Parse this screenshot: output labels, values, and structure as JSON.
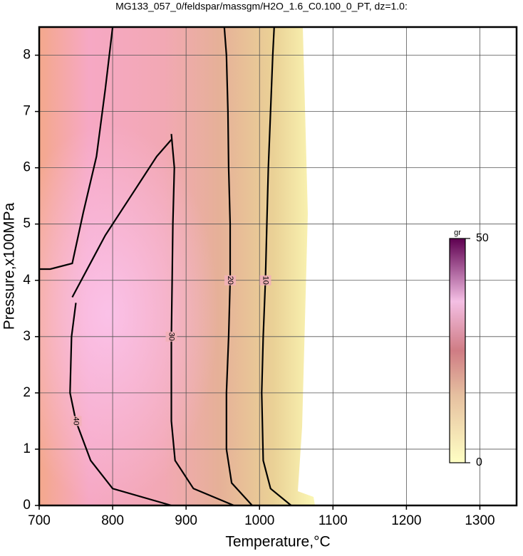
{
  "chart_data": {
    "type": "contour",
    "title": "MG133_057_0/feldspar/massgm/H2O_1.6_C0.100_0_PT, dz=1.0:",
    "x_label": "Temperature,°C",
    "y_label": "Pressure,x100MPa",
    "xlim": [
      700,
      1350
    ],
    "ylim": [
      0,
      8.5
    ],
    "xticks": [
      700,
      800,
      900,
      1000,
      1100,
      1200,
      1300
    ],
    "yticks": [
      0,
      1,
      2,
      3,
      4,
      5,
      6,
      7,
      8
    ],
    "grid": true,
    "contours": [
      {
        "level": 10,
        "x": [
          1043,
          1015,
          1005,
          1003,
          1005,
          1008,
          1010,
          1012,
          1015,
          1018,
          1020
        ],
        "y": [
          0,
          0.3,
          0.8,
          2,
          3,
          4,
          5,
          6,
          7,
          8,
          8.5
        ]
      },
      {
        "level": 20,
        "x": [
          990,
          962,
          955,
          955,
          958,
          960,
          960,
          958,
          957,
          955,
          952
        ],
        "y": [
          0,
          0.4,
          1,
          2,
          3,
          4,
          5,
          6,
          7,
          8,
          8.5
        ]
      },
      {
        "level": 30,
        "x": [
          965,
          910,
          885,
          880,
          880,
          881,
          882,
          884,
          880
        ],
        "y": [
          0,
          0.3,
          0.8,
          1.5,
          3,
          4,
          5,
          6,
          6.6
        ]
      },
      {
        "level": 40,
        "x": [
          880,
          800,
          770,
          750,
          742,
          744,
          750
        ],
        "y": [
          0,
          0.3,
          0.8,
          1.5,
          2,
          3,
          3.6
        ]
      }
    ],
    "boundaries": [
      {
        "x": [
          745,
          790,
          830,
          860,
          880
        ],
        "y": [
          3.7,
          4.8,
          5.6,
          6.2,
          6.5
        ]
      },
      {
        "x": [
          700,
          715,
          745,
          760,
          778,
          790,
          800
        ],
        "y": [
          4.2,
          4.2,
          4.3,
          5.2,
          6.2,
          7.4,
          8.5
        ]
      }
    ],
    "colorbar": {
      "label": "gr",
      "clim": [
        0,
        50
      ],
      "ticks": [
        0,
        50
      ]
    }
  }
}
